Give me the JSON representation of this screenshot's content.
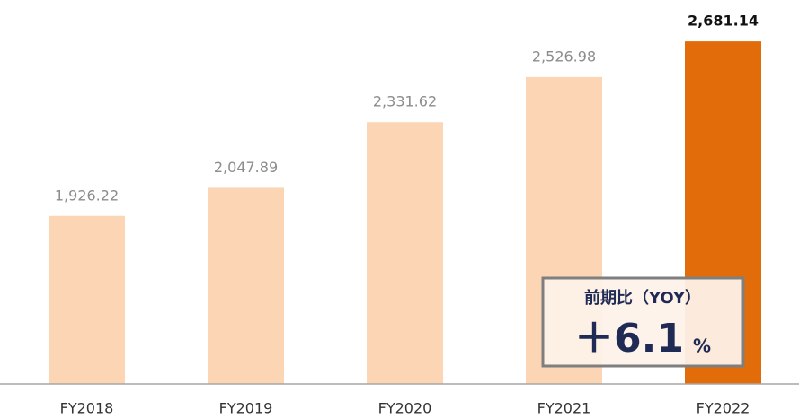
{
  "chart_data": {
    "type": "bar",
    "categories": [
      "FY2018",
      "FY2019",
      "FY2020",
      "FY2021",
      "FY2022"
    ],
    "values": [
      1926.22,
      2047.89,
      2331.62,
      2526.98,
      2681.14
    ],
    "value_labels": [
      "1,926.22",
      "2,047.89",
      "2,331.62",
      "2,526.98",
      "2,681.14"
    ],
    "color": "#fbd5b4",
    "highlight": {
      "index": 4,
      "color": "#e36c0a"
    },
    "ylim": [
      1200,
      2860
    ],
    "annotation": {
      "title": "前期比（YOY）",
      "value": "＋6.1",
      "unit": "%"
    }
  }
}
